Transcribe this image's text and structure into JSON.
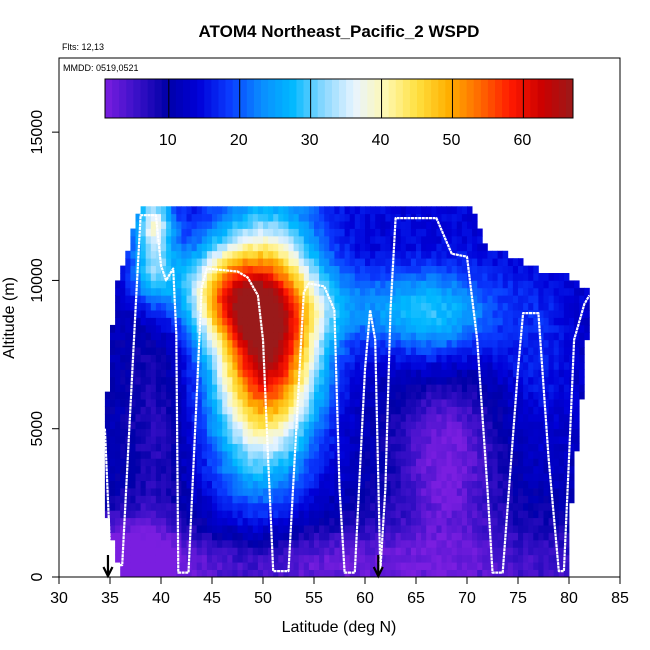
{
  "chart_data": {
    "type": "heatmap",
    "title": "ATOM4 Northeast_Pacific_2 WSPD",
    "flights_note": "Flts: 12,13",
    "mmdd_note": "MMDD: 0519,0521",
    "xlabel": "Latitude (deg N)",
    "ylabel": "Altitude (m)",
    "xlim": [
      30,
      85
    ],
    "ylim": [
      0,
      17500
    ],
    "x_ticks": [
      30,
      35,
      40,
      45,
      50,
      55,
      60,
      65,
      70,
      75,
      80,
      85
    ],
    "y_ticks": [
      0,
      5000,
      10000,
      15000
    ],
    "colorbar": {
      "range": [
        1,
        67
      ],
      "ticks": [
        10,
        20,
        30,
        40,
        50,
        60
      ],
      "colors": [
        "#7a1ee0",
        "#3a10c8",
        "#0000a8",
        "#0000d8",
        "#0a3cff",
        "#0a8cff",
        "#00b8ff",
        "#8ad8ff",
        "#e8f4ff",
        "#fff8b0",
        "#ffe040",
        "#ffb000",
        "#ff6a00",
        "#ff1a00",
        "#cc0000",
        "#9a1a1a"
      ]
    },
    "arrows_x": [
      34.8,
      61.3
    ],
    "ceiling": [
      [
        34.5,
        5000
      ],
      [
        35.5,
        9500
      ],
      [
        37.5,
        11800
      ],
      [
        38,
        12500
      ],
      [
        51,
        12500
      ],
      [
        62,
        12500
      ],
      [
        70,
        12400
      ],
      [
        71,
        12000
      ],
      [
        72,
        11000
      ],
      [
        75,
        10600
      ],
      [
        78,
        10100
      ],
      [
        80,
        10000
      ],
      [
        82,
        9600
      ],
      [
        82,
        9100
      ]
    ],
    "floor": [
      [
        34.5,
        2300
      ],
      [
        35.2,
        1300
      ],
      [
        36,
        0
      ],
      [
        80,
        0
      ],
      [
        80,
        1700
      ],
      [
        81.5,
        7000
      ],
      [
        82,
        9100
      ]
    ],
    "wind_features": [
      {
        "x": 50.5,
        "y": 8100,
        "sx": 3.6,
        "sy": 2500,
        "amp": 52
      },
      {
        "x": 46,
        "y": 9600,
        "sx": 3.0,
        "sy": 1100,
        "amp": 22
      },
      {
        "x": 39.3,
        "y": 10400,
        "sx": 1.6,
        "sy": 900,
        "amp": 18
      },
      {
        "x": 39.3,
        "y": 12000,
        "sx": 1.3,
        "sy": 600,
        "amp": 20
      },
      {
        "x": 60,
        "y": 9100,
        "sx": 8.0,
        "sy": 900,
        "amp": 8
      },
      {
        "x": 67,
        "y": 8700,
        "sx": 4.0,
        "sy": 1200,
        "amp": 12
      },
      {
        "x": 77,
        "y": 7500,
        "sx": 3.0,
        "sy": 2200,
        "amp": 5
      },
      {
        "x": 49,
        "y": 4500,
        "sx": 3.5,
        "sy": 3000,
        "amp": 8
      }
    ],
    "calm_features": [
      {
        "x": 36,
        "y": 600,
        "sx": 3,
        "sy": 1000,
        "amp": 7
      },
      {
        "x": 50,
        "y": 500,
        "sx": 20,
        "sy": 800,
        "amp": 6
      },
      {
        "x": 68,
        "y": 4000,
        "sx": 3.5,
        "sy": 2000,
        "amp": 10
      },
      {
        "x": 39.5,
        "y": 5000,
        "sx": 2,
        "sy": 3000,
        "amp": 4
      }
    ],
    "flight_track": [
      [
        34.5,
        5000
      ],
      [
        35.0,
        1000
      ],
      [
        35.2,
        400
      ],
      [
        36.2,
        400
      ],
      [
        37.5,
        9000
      ],
      [
        38.0,
        12200
      ],
      [
        39.5,
        12200
      ],
      [
        40.0,
        10500
      ],
      [
        40.5,
        10000
      ],
      [
        41.2,
        10400
      ],
      [
        41.5,
        8200
      ],
      [
        41.7,
        150
      ],
      [
        42.7,
        150
      ],
      [
        44.0,
        9800
      ],
      [
        44.5,
        10400
      ],
      [
        47.5,
        10300
      ],
      [
        48.5,
        10100
      ],
      [
        49.5,
        9500
      ],
      [
        50.0,
        8000
      ],
      [
        50.5,
        4000
      ],
      [
        51.0,
        200
      ],
      [
        52.5,
        200
      ],
      [
        54.0,
        9600
      ],
      [
        54.5,
        9900
      ],
      [
        56.0,
        9800
      ],
      [
        57.0,
        9000
      ],
      [
        57.5,
        3000
      ],
      [
        58.0,
        150
      ],
      [
        59.0,
        150
      ],
      [
        60.0,
        7000
      ],
      [
        60.5,
        9000
      ],
      [
        61.0,
        8000
      ],
      [
        61.5,
        200
      ],
      [
        62.0,
        3000
      ],
      [
        62.5,
        9000
      ],
      [
        63.0,
        12100
      ],
      [
        67.0,
        12100
      ],
      [
        68.5,
        10900
      ],
      [
        70.0,
        10800
      ],
      [
        71.0,
        8000
      ],
      [
        72.0,
        3000
      ],
      [
        72.5,
        150
      ],
      [
        73.5,
        150
      ],
      [
        75.0,
        7000
      ],
      [
        75.5,
        8900
      ],
      [
        77.0,
        8900
      ],
      [
        78.0,
        4000
      ],
      [
        79.0,
        200
      ],
      [
        79.5,
        200
      ],
      [
        80.0,
        4000
      ],
      [
        80.5,
        8000
      ],
      [
        81.5,
        9200
      ],
      [
        82.0,
        9500
      ]
    ]
  }
}
